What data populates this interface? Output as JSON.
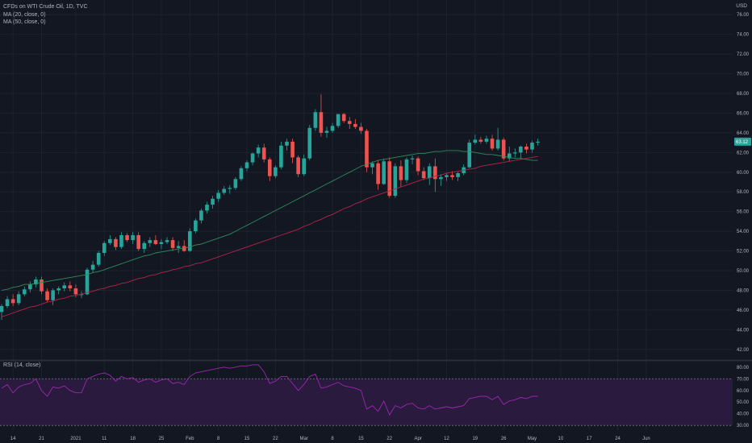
{
  "legend": {
    "symbol": "CFDs on WTI Crude Oil, 1D, TVC",
    "ma20": "MA (20, close, 0)",
    "ma50": "MA (50, close, 0)",
    "rsi": "RSI (14, close)"
  },
  "currency": "USD",
  "last_price_label": "63.12",
  "colors": {
    "bg": "#131722",
    "up": "#26a69a",
    "down": "#ef5350",
    "ma20": "#2e8b57",
    "ma50": "#b5234a",
    "rsi_line": "#9c27b0",
    "rsi_band": "#2a1a3e",
    "grid": "#1e222d"
  },
  "chart_data": [
    {
      "type": "candlestick",
      "title": "CFDs on WTI Crude Oil, 1D, TVC",
      "ylim": [
        41,
        77
      ],
      "y_ticks": [
        42,
        44,
        46,
        48,
        50,
        52,
        54,
        56,
        58,
        60,
        62,
        64,
        66,
        68,
        70,
        72,
        74,
        76
      ],
      "y_tick_labels": [
        "42.00",
        "44.00",
        "46.00",
        "48.00",
        "50.00",
        "52.00",
        "54.00",
        "56.00",
        "58.00",
        "60.00",
        "62.00",
        "64.00",
        "66.00",
        "68.00",
        "70.00",
        "72.00",
        "74.00",
        "76.00"
      ],
      "x_tick_labels": [
        "14",
        "21",
        "2021",
        "11",
        "18",
        "25",
        "Feb",
        "8",
        "15",
        "22",
        "Mar",
        "8",
        "15",
        "22",
        "Apr",
        "12",
        "19",
        "26",
        "May",
        "10",
        "17",
        "24",
        "Jun"
      ],
      "x_tick_slots": [
        2,
        7,
        13,
        18,
        23,
        28,
        33,
        38,
        43,
        48,
        53,
        58,
        63,
        68,
        73,
        78,
        83,
        88,
        93,
        98,
        103,
        108,
        113
      ],
      "candles": [
        [
          45.8,
          46.6,
          45.0,
          46.4
        ],
        [
          46.4,
          47.4,
          46.2,
          47.1
        ],
        [
          47.1,
          47.6,
          46.4,
          46.7
        ],
        [
          46.7,
          47.9,
          46.5,
          47.6
        ],
        [
          47.6,
          48.4,
          47.4,
          48.1
        ],
        [
          48.1,
          48.9,
          47.8,
          48.6
        ],
        [
          48.6,
          49.4,
          48.3,
          49.1
        ],
        [
          49.1,
          49.4,
          47.6,
          47.9
        ],
        [
          47.9,
          48.2,
          46.8,
          47.0
        ],
        [
          47.0,
          48.2,
          46.5,
          48.0
        ],
        [
          48.0,
          48.4,
          47.6,
          48.2
        ],
        [
          48.2,
          48.8,
          47.9,
          48.5
        ],
        [
          48.5,
          48.9,
          47.9,
          48.2
        ],
        [
          48.2,
          48.6,
          47.3,
          47.6
        ],
        [
          47.6,
          47.9,
          47.2,
          47.6
        ],
        [
          47.6,
          50.3,
          47.5,
          50.1
        ],
        [
          50.1,
          51.0,
          49.8,
          50.6
        ],
        [
          50.6,
          52.0,
          50.4,
          51.8
        ],
        [
          51.8,
          53.0,
          51.5,
          52.8
        ],
        [
          52.8,
          53.6,
          52.6,
          53.2
        ],
        [
          53.2,
          53.4,
          52.1,
          52.4
        ],
        [
          52.4,
          53.9,
          52.2,
          53.6
        ],
        [
          53.6,
          53.8,
          52.9,
          53.1
        ],
        [
          53.1,
          53.9,
          52.7,
          53.6
        ],
        [
          53.6,
          53.9,
          52.0,
          52.2
        ],
        [
          52.2,
          53.0,
          51.8,
          52.8
        ],
        [
          52.8,
          53.4,
          52.4,
          53.1
        ],
        [
          53.1,
          53.6,
          52.6,
          52.7
        ],
        [
          52.7,
          53.2,
          52.2,
          52.9
        ],
        [
          52.9,
          53.4,
          52.7,
          53.1
        ],
        [
          53.1,
          53.4,
          52.0,
          52.3
        ],
        [
          52.3,
          53.0,
          51.8,
          52.5
        ],
        [
          52.5,
          53.1,
          51.9,
          52.0
        ],
        [
          52.0,
          54.3,
          51.9,
          54.0
        ],
        [
          54.0,
          55.3,
          53.8,
          55.1
        ],
        [
          55.1,
          56.3,
          54.8,
          56.1
        ],
        [
          56.1,
          57.0,
          55.8,
          56.7
        ],
        [
          56.7,
          57.6,
          56.3,
          57.3
        ],
        [
          57.3,
          58.2,
          57.0,
          57.9
        ],
        [
          57.9,
          58.6,
          57.7,
          58.3
        ],
        [
          58.3,
          58.7,
          57.8,
          58.4
        ],
        [
          58.4,
          59.5,
          58.2,
          59.3
        ],
        [
          59.3,
          60.6,
          59.1,
          60.4
        ],
        [
          60.4,
          61.2,
          60.1,
          61.0
        ],
        [
          61.0,
          62.0,
          60.7,
          61.9
        ],
        [
          61.9,
          62.8,
          61.5,
          62.5
        ],
        [
          62.5,
          62.9,
          61.0,
          61.3
        ],
        [
          61.3,
          61.5,
          59.1,
          59.6
        ],
        [
          59.6,
          60.7,
          59.4,
          60.5
        ],
        [
          60.5,
          63.1,
          60.3,
          62.7
        ],
        [
          62.7,
          63.4,
          62.2,
          63.1
        ],
        [
          63.1,
          63.4,
          60.9,
          61.5
        ],
        [
          61.5,
          61.7,
          59.5,
          59.8
        ],
        [
          59.8,
          61.8,
          59.6,
          61.4
        ],
        [
          61.4,
          64.8,
          61.2,
          64.5
        ],
        [
          64.5,
          66.4,
          64.2,
          66.1
        ],
        [
          66.1,
          67.9,
          63.6,
          64.0
        ],
        [
          64.0,
          64.6,
          63.5,
          64.2
        ],
        [
          64.2,
          65.0,
          64.0,
          64.7
        ],
        [
          64.7,
          65.9,
          64.5,
          65.9
        ],
        [
          65.9,
          66.0,
          65.0,
          65.2
        ],
        [
          65.2,
          65.6,
          64.4,
          64.9
        ],
        [
          64.9,
          65.4,
          64.4,
          64.6
        ],
        [
          64.6,
          65.0,
          63.9,
          64.2
        ],
        [
          64.2,
          64.4,
          60.0,
          60.5
        ],
        [
          60.5,
          61.1,
          59.8,
          60.9
        ],
        [
          60.9,
          61.2,
          58.2,
          58.8
        ],
        [
          58.8,
          61.4,
          58.7,
          61.1
        ],
        [
          61.1,
          61.5,
          57.4,
          57.6
        ],
        [
          57.6,
          60.9,
          57.4,
          60.6
        ],
        [
          60.6,
          61.2,
          58.5,
          59.2
        ],
        [
          59.2,
          61.5,
          58.9,
          61.3
        ],
        [
          61.3,
          61.7,
          60.8,
          61.4
        ],
        [
          61.4,
          61.6,
          59.7,
          60.1
        ],
        [
          60.1,
          60.5,
          59.2,
          59.4
        ],
        [
          59.4,
          60.9,
          58.7,
          60.6
        ],
        [
          60.6,
          61.4,
          58.0,
          59.3
        ],
        [
          59.3,
          59.8,
          58.6,
          59.5
        ],
        [
          59.5,
          59.9,
          59.1,
          59.7
        ],
        [
          59.7,
          60.1,
          59.2,
          59.5
        ],
        [
          59.5,
          60.0,
          59.1,
          59.9
        ],
        [
          59.9,
          60.8,
          59.7,
          60.5
        ],
        [
          60.5,
          63.3,
          60.4,
          63.0
        ],
        [
          63.0,
          63.8,
          62.8,
          63.3
        ],
        [
          63.3,
          63.6,
          62.9,
          63.1
        ],
        [
          63.1,
          63.7,
          62.9,
          63.4
        ],
        [
          63.4,
          63.8,
          62.2,
          62.4
        ],
        [
          62.4,
          64.5,
          62.2,
          63.3
        ],
        [
          63.3,
          63.5,
          61.2,
          61.4
        ],
        [
          61.4,
          62.6,
          61.1,
          61.9
        ],
        [
          61.9,
          62.4,
          61.5,
          62.0
        ],
        [
          62.0,
          62.7,
          61.4,
          62.6
        ],
        [
          62.6,
          62.9,
          61.9,
          62.3
        ],
        [
          62.3,
          63.2,
          62.0,
          63.0
        ],
        [
          63.0,
          63.4,
          62.7,
          63.1
        ]
      ],
      "ma20": [
        48.0,
        48.1,
        48.3,
        48.4,
        48.6,
        48.6,
        48.7,
        48.8,
        48.9,
        49.0,
        49.1,
        49.2,
        49.3,
        49.4,
        49.5,
        49.6,
        49.8,
        49.9,
        50.1,
        50.3,
        50.5,
        50.7,
        50.9,
        51.1,
        51.3,
        51.5,
        51.6,
        51.8,
        51.9,
        52.0,
        52.1,
        52.2,
        52.3,
        52.4,
        52.6,
        52.7,
        52.9,
        53.1,
        53.3,
        53.5,
        53.7,
        54.0,
        54.3,
        54.6,
        54.9,
        55.2,
        55.5,
        55.8,
        56.1,
        56.4,
        56.7,
        57.0,
        57.3,
        57.6,
        57.9,
        58.2,
        58.5,
        58.8,
        59.1,
        59.4,
        59.7,
        60.0,
        60.3,
        60.6,
        60.8,
        61.0,
        61.2,
        61.3,
        61.4,
        61.5,
        61.6,
        61.7,
        61.8,
        61.9,
        61.9,
        62.0,
        62.1,
        62.1,
        62.2,
        62.2,
        62.2,
        62.1,
        62.1,
        62.0,
        61.9,
        61.8,
        61.8,
        61.7,
        61.6,
        61.5,
        61.4,
        61.4,
        61.3,
        61.2,
        61.2
      ],
      "ma50": [
        45.3,
        45.5,
        45.7,
        45.9,
        46.1,
        46.3,
        46.4,
        46.6,
        46.8,
        46.9,
        47.1,
        47.2,
        47.4,
        47.5,
        47.6,
        47.8,
        47.9,
        48.1,
        48.2,
        48.4,
        48.5,
        48.7,
        48.8,
        49.0,
        49.2,
        49.3,
        49.5,
        49.6,
        49.8,
        49.9,
        50.1,
        50.2,
        50.4,
        50.5,
        50.7,
        50.8,
        51.0,
        51.2,
        51.4,
        51.6,
        51.8,
        52.0,
        52.2,
        52.4,
        52.6,
        52.8,
        53.0,
        53.2,
        53.4,
        53.6,
        53.8,
        54.0,
        54.2,
        54.5,
        54.7,
        55.0,
        55.2,
        55.5,
        55.7,
        56.0,
        56.3,
        56.5,
        56.8,
        57.0,
        57.3,
        57.5,
        57.7,
        57.9,
        58.1,
        58.3,
        58.5,
        58.7,
        58.9,
        59.1,
        59.3,
        59.4,
        59.6,
        59.7,
        59.9,
        60.0,
        60.1,
        60.2,
        60.3,
        60.4,
        60.6,
        60.7,
        60.8,
        60.9,
        61.0,
        61.1,
        61.2,
        61.3,
        61.4,
        61.5,
        61.6
      ]
    },
    {
      "type": "line",
      "title": "RSI (14, close)",
      "ylim": [
        26,
        84
      ],
      "y_ticks": [
        30,
        40,
        50,
        60,
        70,
        80
      ],
      "y_tick_labels": [
        "30.00",
        "40.00",
        "50.00",
        "60.00",
        "70.00",
        "80.00"
      ],
      "band": [
        30,
        70
      ],
      "values": [
        62,
        65,
        58,
        63,
        65,
        66,
        70,
        60,
        55,
        63,
        62,
        64,
        60,
        58,
        58,
        70,
        72,
        74,
        75,
        73,
        68,
        72,
        70,
        71,
        67,
        69,
        70,
        67,
        69,
        70,
        66,
        67,
        65,
        72,
        75,
        76,
        77,
        78,
        79,
        80,
        79,
        80,
        81,
        81,
        82,
        82,
        76,
        66,
        68,
        72,
        72,
        66,
        60,
        65,
        72,
        74,
        62,
        63,
        65,
        67,
        64,
        63,
        62,
        60,
        44,
        47,
        42,
        51,
        39,
        47,
        45,
        48,
        49,
        45,
        44,
        47,
        44,
        45,
        46,
        45,
        46,
        47,
        53,
        54,
        55,
        55,
        52,
        55,
        48,
        51,
        52,
        54,
        53,
        55,
        55
      ]
    }
  ]
}
